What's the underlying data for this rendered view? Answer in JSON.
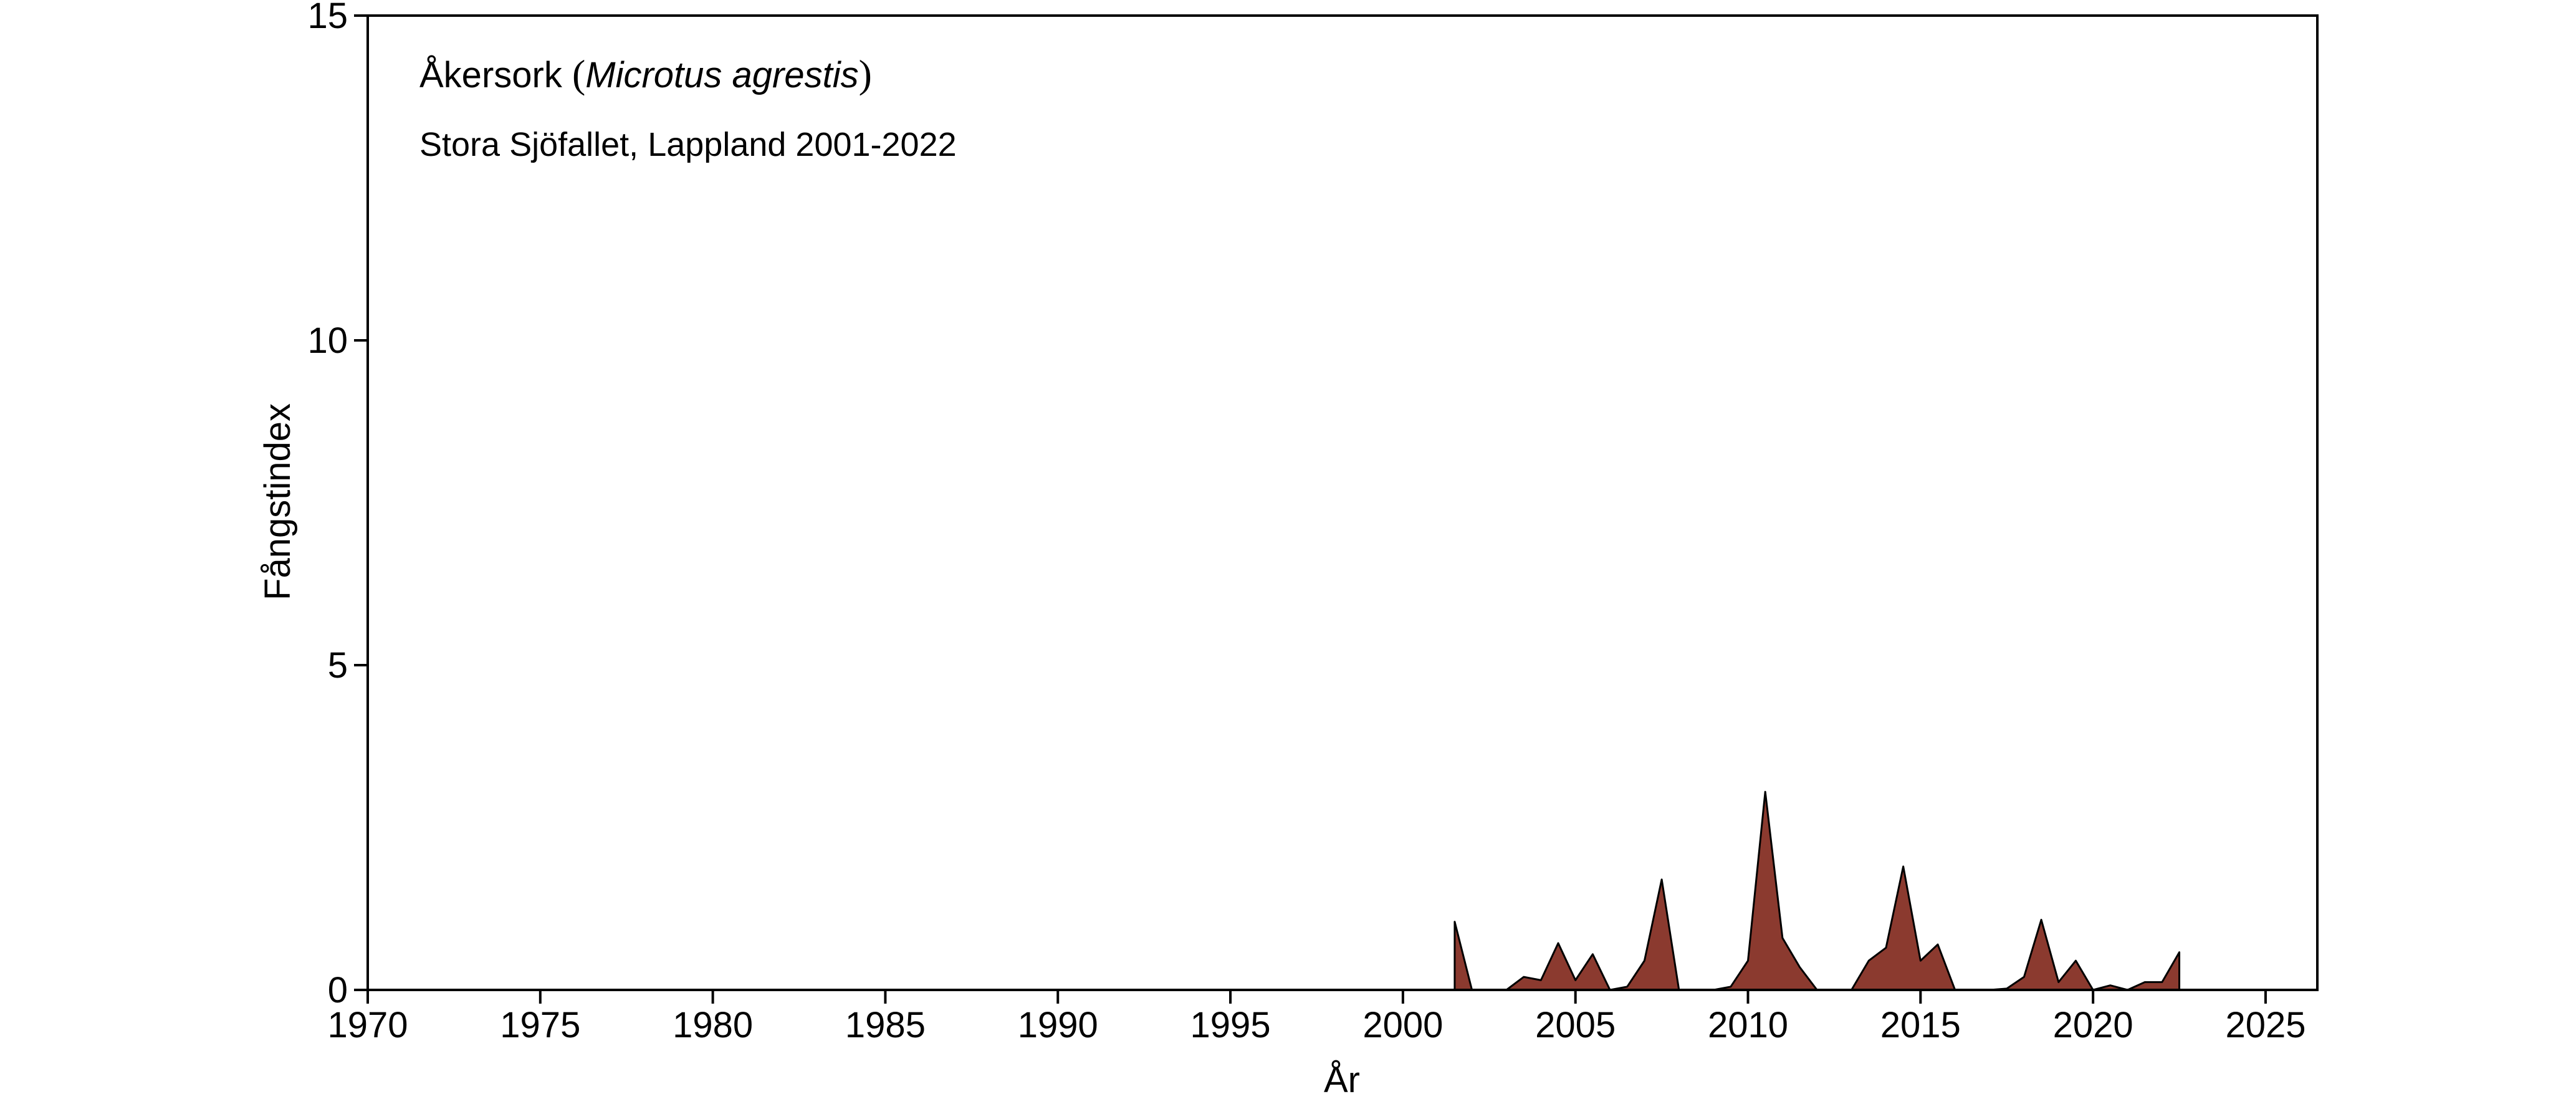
{
  "chart_data": {
    "type": "area",
    "title": "Åkersork",
    "title_species": "Microtus agrestis",
    "subtitle": "Stora Sjöfallet, Lappland 2001-2022",
    "xlabel": "År",
    "ylabel": "Fångstindex",
    "xlim": [
      1970,
      2026.5
    ],
    "ylim": [
      0,
      15
    ],
    "x_ticks": [
      1970,
      1975,
      1980,
      1985,
      1990,
      1995,
      2000,
      2005,
      2010,
      2015,
      2020,
      2025
    ],
    "y_ticks": [
      0,
      5,
      10,
      15
    ],
    "grid": false,
    "legend": "none",
    "colors": {
      "fill": "#8B3A2F",
      "stroke": "#000000",
      "axis": "#000000"
    },
    "series": [
      {
        "x": [
          2001.5,
          2002,
          2003,
          2003.5,
          2004,
          2004.5,
          2005,
          2005.5,
          2006,
          2006.5,
          2007,
          2007.5,
          2008,
          2009,
          2009.5,
          2010,
          2010.5,
          2011,
          2011.5,
          2012,
          2013,
          2013.5,
          2014,
          2014.5,
          2015,
          2015.5,
          2016,
          2017,
          2017.5,
          2018,
          2018.5,
          2019,
          2019.5,
          2020,
          2020.5,
          2021,
          2021.5,
          2022,
          2022.5
        ],
        "values": [
          1.05,
          0.0,
          0.0,
          0.2,
          0.15,
          0.72,
          0.15,
          0.55,
          0.0,
          0.05,
          0.45,
          1.7,
          0.0,
          0.0,
          0.05,
          0.45,
          3.05,
          0.8,
          0.35,
          0.0,
          0.0,
          0.45,
          0.65,
          1.9,
          0.45,
          0.7,
          0.0,
          0.0,
          0.02,
          0.2,
          1.08,
          0.12,
          0.45,
          0.0,
          0.07,
          0.0,
          0.12,
          0.12,
          0.58
        ]
      }
    ]
  }
}
